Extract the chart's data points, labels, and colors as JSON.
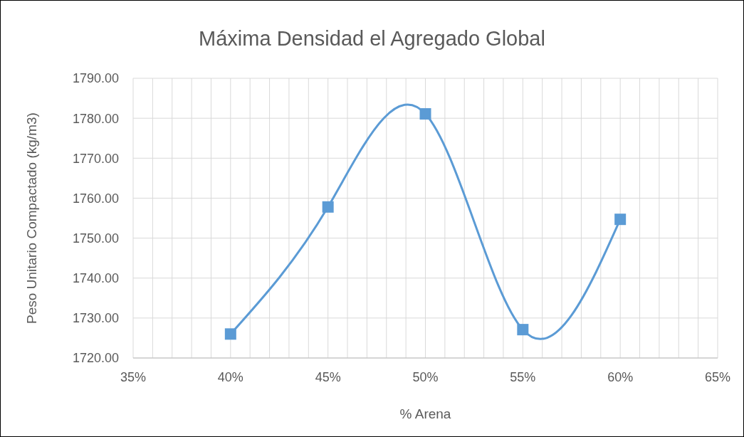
{
  "chart_data": {
    "type": "line",
    "title": "Máxima Densidad el Agregado Global",
    "xlabel": "% Arena",
    "ylabel": "Peso Unitario Compactado (kg/m3)",
    "x": [
      40,
      45,
      50,
      55,
      60
    ],
    "series": [
      {
        "color": "#5b9bd5",
        "values": [
          1726.0,
          1757.8,
          1781.1,
          1727.1,
          1754.7
        ]
      }
    ],
    "xlim": [
      35,
      65
    ],
    "xticks": [
      {
        "value": 35,
        "label": "35%"
      },
      {
        "value": 36,
        "label": null
      },
      {
        "value": 37,
        "label": null
      },
      {
        "value": 38,
        "label": null
      },
      {
        "value": 39,
        "label": null
      },
      {
        "value": 40,
        "label": "40%"
      },
      {
        "value": 41,
        "label": null
      },
      {
        "value": 42,
        "label": null
      },
      {
        "value": 43,
        "label": null
      },
      {
        "value": 44,
        "label": null
      },
      {
        "value": 45,
        "label": "45%"
      },
      {
        "value": 46,
        "label": null
      },
      {
        "value": 47,
        "label": null
      },
      {
        "value": 48,
        "label": null
      },
      {
        "value": 49,
        "label": null
      },
      {
        "value": 50,
        "label": "50%"
      },
      {
        "value": 51,
        "label": null
      },
      {
        "value": 52,
        "label": null
      },
      {
        "value": 53,
        "label": null
      },
      {
        "value": 54,
        "label": null
      },
      {
        "value": 55,
        "label": "55%"
      },
      {
        "value": 56,
        "label": null
      },
      {
        "value": 57,
        "label": null
      },
      {
        "value": 58,
        "label": null
      },
      {
        "value": 59,
        "label": null
      },
      {
        "value": 60,
        "label": "60%"
      },
      {
        "value": 61,
        "label": null
      },
      {
        "value": 62,
        "label": null
      },
      {
        "value": 63,
        "label": null
      },
      {
        "value": 64,
        "label": null
      },
      {
        "value": 65,
        "label": "65%"
      }
    ],
    "ylim": [
      1720,
      1790
    ],
    "yticks": [
      {
        "value": 1720,
        "label": "1720.00"
      },
      {
        "value": 1730,
        "label": "1730.00"
      },
      {
        "value": 1740,
        "label": "1740.00"
      },
      {
        "value": 1750,
        "label": "1750.00"
      },
      {
        "value": 1760,
        "label": "1760.00"
      },
      {
        "value": 1770,
        "label": "1770.00"
      },
      {
        "value": 1780,
        "label": "1780.00"
      },
      {
        "value": 1790,
        "label": "1790.00"
      }
    ],
    "grid": true,
    "marker": "square",
    "line_style": "solid"
  }
}
